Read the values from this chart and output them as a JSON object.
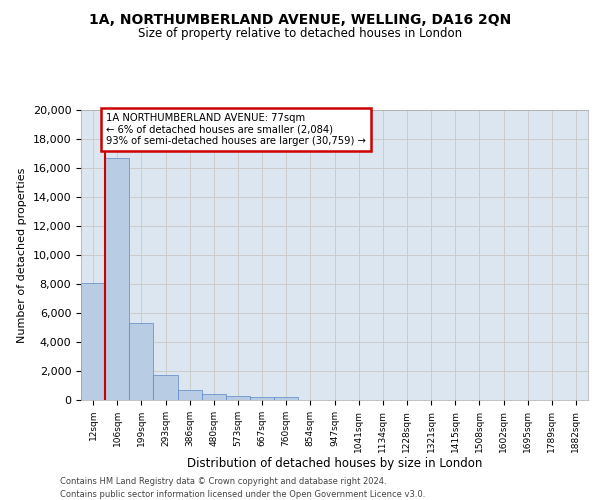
{
  "title_line1": "1A, NORTHUMBERLAND AVENUE, WELLING, DA16 2QN",
  "title_line2": "Size of property relative to detached houses in London",
  "xlabel": "Distribution of detached houses by size in London",
  "ylabel": "Number of detached properties",
  "categories": [
    "12sqm",
    "106sqm",
    "199sqm",
    "293sqm",
    "386sqm",
    "480sqm",
    "573sqm",
    "667sqm",
    "760sqm",
    "854sqm",
    "947sqm",
    "1041sqm",
    "1134sqm",
    "1228sqm",
    "1321sqm",
    "1415sqm",
    "1508sqm",
    "1602sqm",
    "1695sqm",
    "1789sqm",
    "1882sqm"
  ],
  "values": [
    8100,
    16700,
    5300,
    1750,
    700,
    380,
    280,
    200,
    200,
    0,
    0,
    0,
    0,
    0,
    0,
    0,
    0,
    0,
    0,
    0,
    0
  ],
  "bar_color": "#b8cce4",
  "bar_edgecolor": "#5b87c5",
  "annotation_title": "1A NORTHUMBERLAND AVENUE: 77sqm",
  "annotation_line1": "← 6% of detached houses are smaller (2,084)",
  "annotation_line2": "93% of semi-detached houses are larger (30,759) →",
  "annotation_box_color": "#ffffff",
  "annotation_border_color": "#cc0000",
  "ylim": [
    0,
    20000
  ],
  "yticks": [
    0,
    2000,
    4000,
    6000,
    8000,
    10000,
    12000,
    14000,
    16000,
    18000,
    20000
  ],
  "grid_color": "#cccccc",
  "background_color": "#dce6f1",
  "footer_line1": "Contains HM Land Registry data © Crown copyright and database right 2024.",
  "footer_line2": "Contains public sector information licensed under the Open Government Licence v3.0.",
  "vline_color": "#cc0000",
  "fig_width": 6.0,
  "fig_height": 5.0,
  "fig_dpi": 100
}
